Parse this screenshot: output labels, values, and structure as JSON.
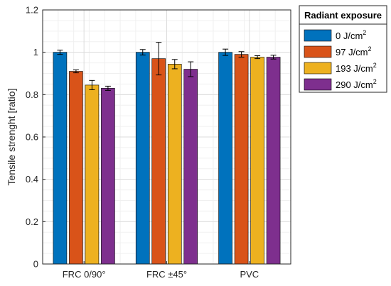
{
  "chart_data": {
    "type": "bar",
    "title": "",
    "xlabel": "",
    "ylabel": "Tensile strenght [ratio]",
    "ylim": [
      0,
      1.2
    ],
    "yticks": [
      0,
      0.2,
      0.4,
      0.6,
      0.8,
      1,
      1.2
    ],
    "ytick_labels": [
      "0",
      "0.2",
      "0.4",
      "0.6",
      "0.8",
      "1",
      "1.2"
    ],
    "grid": true,
    "legend": {
      "title": "Radiant exposure",
      "placement": "outside-top-right"
    },
    "categories": [
      "FRC 0/90°",
      "FRC ±45°",
      "PVC"
    ],
    "series": [
      {
        "name": "0 J/cm",
        "sup": "2",
        "color": "#0072BD",
        "values": [
          1.0,
          1.0,
          1.0
        ],
        "errors": [
          0.01,
          0.013,
          0.015
        ]
      },
      {
        "name": "97 J/cm",
        "sup": "2",
        "color": "#D95319",
        "values": [
          0.91,
          0.97,
          0.99
        ],
        "errors": [
          0.007,
          0.077,
          0.013
        ]
      },
      {
        "name": "193 J/cm",
        "sup": "2",
        "color": "#EDB120",
        "values": [
          0.845,
          0.944,
          0.977
        ],
        "errors": [
          0.022,
          0.022,
          0.007
        ]
      },
      {
        "name": "290 J/cm",
        "sup": "2",
        "color": "#7E2F8E",
        "values": [
          0.83,
          0.92,
          0.977
        ],
        "errors": [
          0.01,
          0.035,
          0.009
        ]
      }
    ]
  }
}
